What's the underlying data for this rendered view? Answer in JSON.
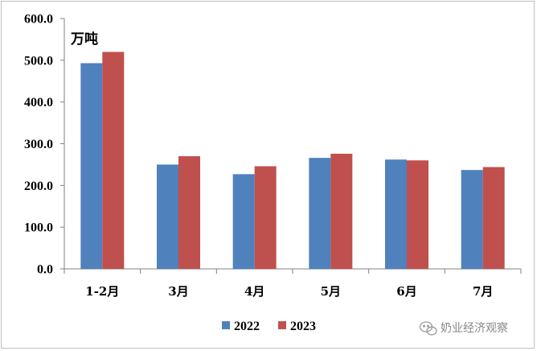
{
  "chart_data": {
    "type": "bar",
    "ylabel": "万吨",
    "categories": [
      "1-2月",
      "3月",
      "4月",
      "5月",
      "6月",
      "7月"
    ],
    "series": [
      {
        "name": "2022",
        "color": "#4F81BD",
        "values": [
          493,
          250,
          227,
          266,
          262,
          237
        ]
      },
      {
        "name": "2023",
        "color": "#C0504D",
        "values": [
          520,
          270,
          246,
          276,
          260,
          244
        ]
      }
    ],
    "ylim": [
      0,
      600
    ],
    "yticks": [
      "0.0",
      "100.0",
      "200.0",
      "300.0",
      "400.0",
      "500.0",
      "600.0"
    ],
    "grid": false,
    "legend_position": "bottom"
  },
  "watermark": {
    "text": "奶业经济观察",
    "icon": "wechat-icon"
  }
}
